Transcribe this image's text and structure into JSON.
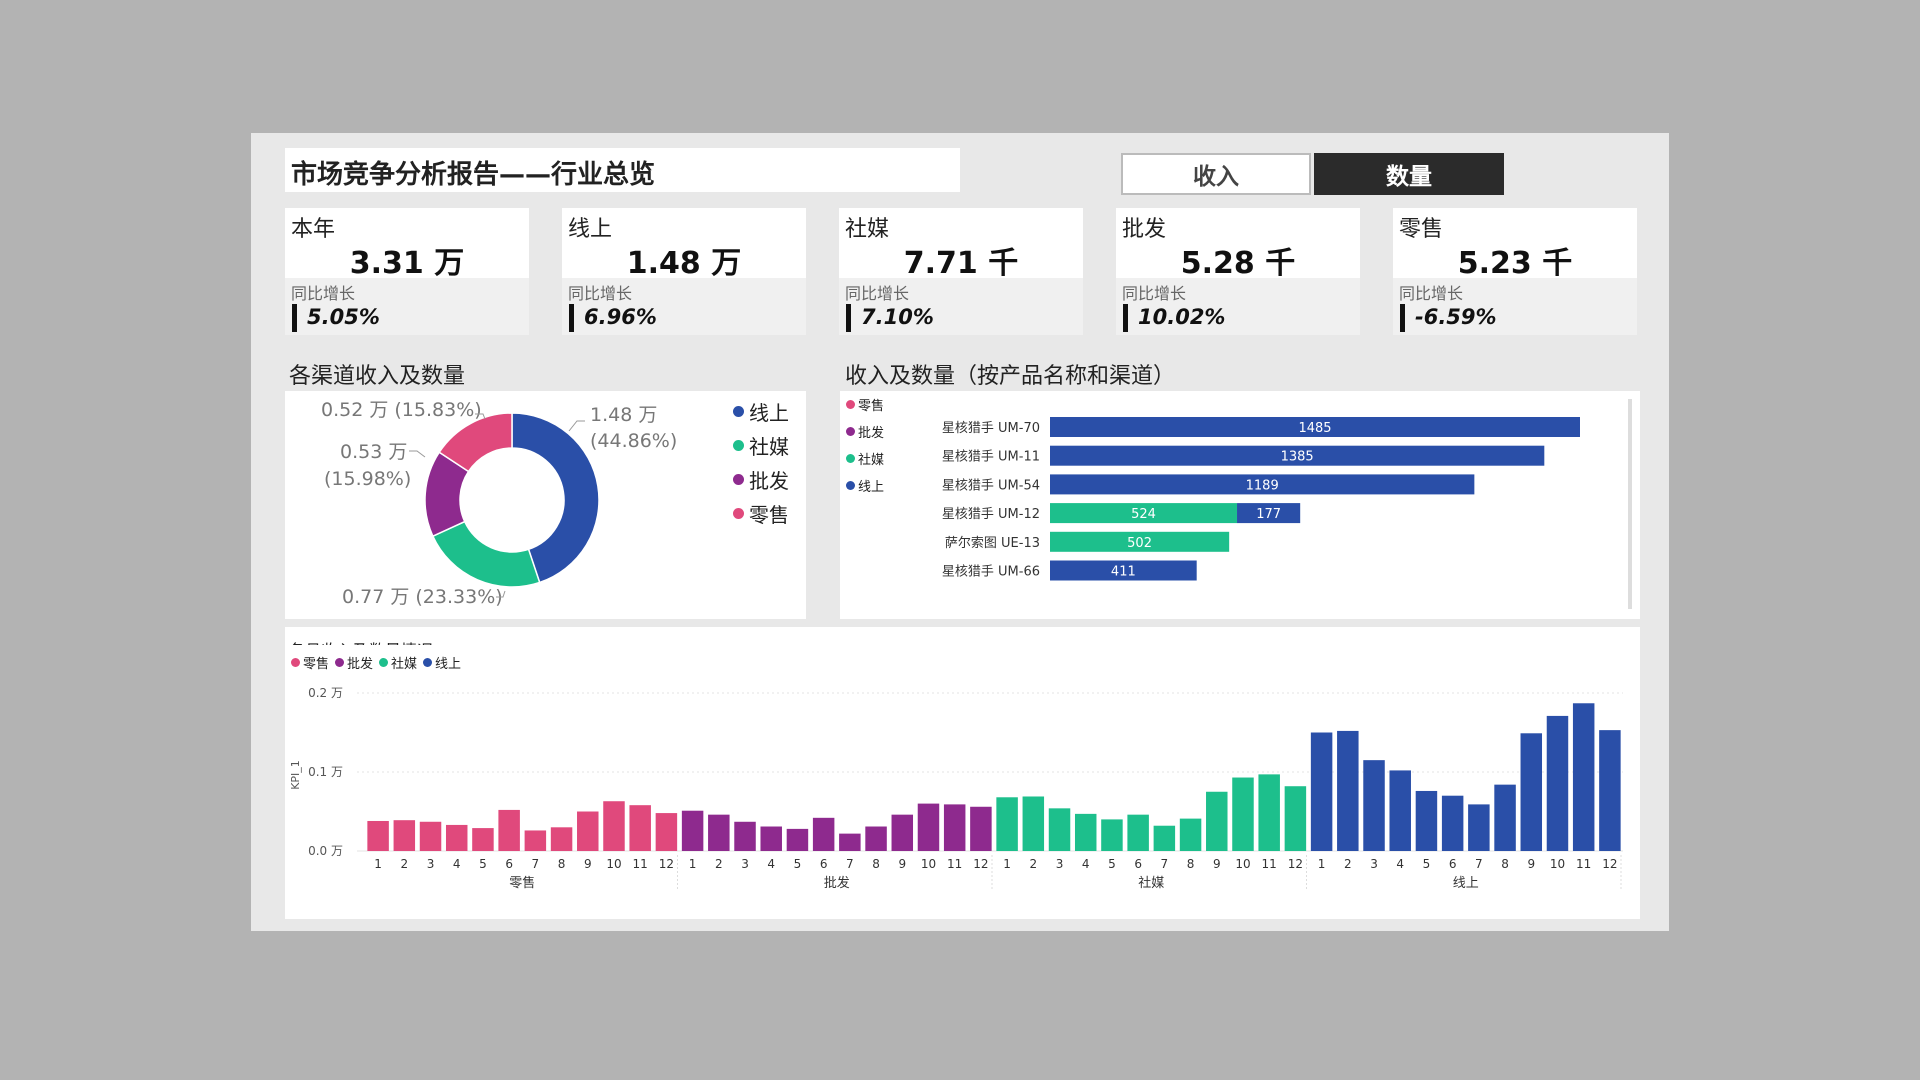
{
  "header": {
    "title": "市场竞争分析报告——行业总览",
    "toggle_revenue": "收入",
    "toggle_quantity": "数量"
  },
  "kpis": [
    {
      "label": "本年",
      "value": "3.31 万",
      "growth_label": "同比增长",
      "growth": "5.05%"
    },
    {
      "label": "线上",
      "value": "1.48 万",
      "growth_label": "同比增长",
      "growth": "6.96%"
    },
    {
      "label": "社媒",
      "value": "7.71 千",
      "growth_label": "同比增长",
      "growth": "7.10%"
    },
    {
      "label": "批发",
      "value": "5.28 千",
      "growth_label": "同比增长",
      "growth": "10.02%"
    },
    {
      "label": "零售",
      "value": "5.23 千",
      "growth_label": "同比增长",
      "growth": "-6.59%"
    }
  ],
  "colors": {
    "online": "#2a4fa8",
    "social": "#1dbf8c",
    "wholesale": "#8e2a8e",
    "retail": "#e0497c"
  },
  "donut_panel": {
    "title": "各渠道收入及数量",
    "legend": [
      "线上",
      "社媒",
      "批发",
      "零售"
    ]
  },
  "bar_panel": {
    "title": "收入及数量（按产品名称和渠道）",
    "legend": [
      "零售",
      "批发",
      "社媒",
      "线上"
    ]
  },
  "monthly_panel": {
    "title": "各月收入及数量情况",
    "legend": [
      "零售",
      "批发",
      "社媒",
      "线上"
    ]
  },
  "chart_data": [
    {
      "type": "pie",
      "style": "donut",
      "slices": [
        {
          "name": "线上",
          "value": 1.48,
          "percent": 44.86,
          "label_line1": "1.48 万",
          "label_line2": "(44.86%)",
          "color": "#2a4fa8"
        },
        {
          "name": "社媒",
          "value": 0.77,
          "percent": 23.33,
          "label_line1": "0.77 万 (23.33%)",
          "color": "#1dbf8c"
        },
        {
          "name": "批发",
          "value": 0.53,
          "percent": 15.98,
          "label_line1": "0.53 万",
          "label_line2": "(15.98%)",
          "color": "#8e2a8e"
        },
        {
          "name": "零售",
          "value": 0.52,
          "percent": 15.83,
          "label_line1": "0.52 万 (15.83%)",
          "color": "#e0497c"
        }
      ]
    },
    {
      "type": "bar",
      "orientation": "horizontal",
      "stacked": true,
      "categories": [
        "星核猎手 UM-70",
        "星核猎手 UM-11",
        "星核猎手 UM-54",
        "星核猎手 UM-12",
        "萨尔索图 UE-13",
        "星核猎手 UM-66"
      ],
      "series": [
        {
          "name": "社媒",
          "color": "#1dbf8c",
          "values": [
            0,
            0,
            0,
            524,
            502,
            0
          ]
        },
        {
          "name": "线上",
          "color": "#2a4fa8",
          "values": [
            1485,
            1385,
            1189,
            177,
            0,
            411
          ]
        }
      ],
      "xlim": [
        0,
        1550
      ]
    },
    {
      "type": "bar",
      "ylabel": "KPI_1",
      "yticks": [
        "0.2 万",
        "0.1 万",
        "0.0 万"
      ],
      "ylim": [
        0,
        2000
      ],
      "months": [
        "1",
        "2",
        "3",
        "4",
        "5",
        "6",
        "7",
        "8",
        "9",
        "10",
        "11",
        "12"
      ],
      "groups": [
        {
          "name": "零售",
          "color": "#e0497c",
          "values": [
            380,
            390,
            370,
            330,
            290,
            520,
            260,
            300,
            500,
            630,
            580,
            480
          ]
        },
        {
          "name": "批发",
          "color": "#8e2a8e",
          "values": [
            510,
            460,
            370,
            310,
            280,
            420,
            220,
            310,
            460,
            600,
            590,
            560
          ]
        },
        {
          "name": "社媒",
          "color": "#1dbf8c",
          "values": [
            680,
            690,
            540,
            470,
            400,
            460,
            320,
            410,
            750,
            930,
            970,
            820
          ]
        },
        {
          "name": "线上",
          "color": "#2a4fa8",
          "values": [
            1500,
            1520,
            1150,
            1020,
            760,
            700,
            590,
            840,
            1490,
            1710,
            1870,
            1530
          ]
        }
      ]
    }
  ]
}
